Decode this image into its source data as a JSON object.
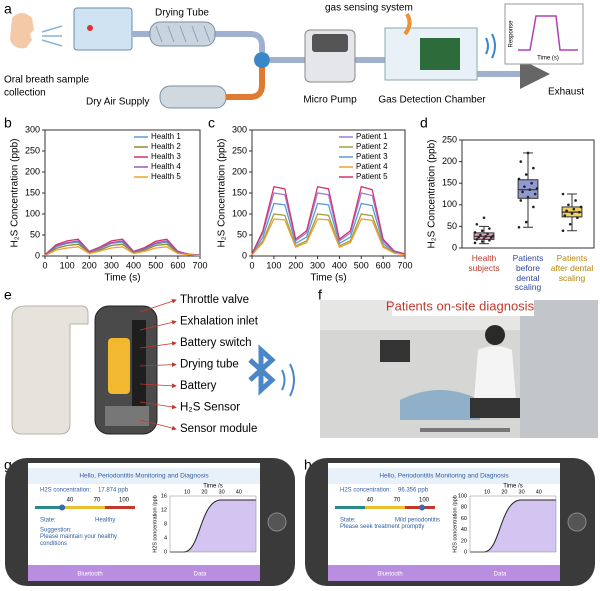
{
  "panel_labels": [
    "a",
    "b",
    "c",
    "d",
    "e",
    "f",
    "g",
    "h"
  ],
  "panel_a": {
    "drying_tube": "Drying Tube",
    "gas_sensing": "gas sensing system",
    "breath": [
      "Oral breath sample",
      "collection"
    ],
    "dry_air": "Dry Air Supply",
    "pump": "Micro Pump",
    "chamber": "Gas Detection Chamber",
    "exhaust": "Exhaust",
    "inset_ylabel": "Response",
    "inset_xlabel": "Time (s)"
  },
  "chart_data": [
    {
      "type": "line",
      "xlabel": "Time (s)",
      "ylabel": "H₂S Concentration (ppb)",
      "x": [
        0,
        50,
        100,
        150,
        200,
        250,
        300,
        350,
        400,
        450,
        500,
        550,
        600,
        650,
        700
      ],
      "xlim": [
        0,
        700
      ],
      "xticks": [
        0,
        100,
        200,
        300,
        400,
        500,
        600,
        700
      ],
      "ylim": [
        0,
        300
      ],
      "yticks": [
        0,
        50,
        100,
        150,
        200,
        250,
        300
      ],
      "legend": "upper right",
      "series": [
        {
          "name": "Health 1",
          "color": "#5b9bd5",
          "values": [
            2,
            22,
            30,
            33,
            9,
            18,
            30,
            33,
            9,
            16,
            29,
            33,
            9,
            4,
            2
          ]
        },
        {
          "name": "Health 2",
          "color": "#8c8c2c",
          "values": [
            2,
            18,
            25,
            28,
            8,
            15,
            25,
            28,
            8,
            14,
            25,
            28,
            8,
            3,
            2
          ]
        },
        {
          "name": "Health 3",
          "color": "#d6336c",
          "values": [
            3,
            27,
            36,
            40,
            11,
            22,
            36,
            40,
            11,
            20,
            35,
            40,
            11,
            4,
            2
          ]
        },
        {
          "name": "Health 4",
          "color": "#9b59b6",
          "values": [
            2,
            24,
            32,
            36,
            10,
            20,
            32,
            36,
            10,
            18,
            31,
            36,
            10,
            4,
            2
          ]
        },
        {
          "name": "Health 5",
          "color": "#f0a030",
          "values": [
            1,
            14,
            19,
            22,
            6,
            12,
            19,
            22,
            6,
            11,
            19,
            22,
            6,
            3,
            1
          ]
        }
      ]
    },
    {
      "type": "line",
      "xlabel": "Time (s)",
      "ylabel": "H₂S Concentration (ppb)",
      "x": [
        0,
        50,
        100,
        150,
        200,
        250,
        300,
        350,
        400,
        450,
        500,
        550,
        600,
        650,
        700
      ],
      "xlim": [
        0,
        700
      ],
      "xticks": [
        0,
        100,
        200,
        300,
        400,
        500,
        600,
        700
      ],
      "ylim": [
        0,
        300
      ],
      "yticks": [
        0,
        50,
        100,
        150,
        200,
        250,
        300
      ],
      "legend": "upper right",
      "series": [
        {
          "name": "Patient 1",
          "color": "#9b7fd4",
          "values": [
            5,
            55,
            150,
            146,
            36,
            55,
            150,
            146,
            36,
            55,
            150,
            144,
            36,
            11,
            5
          ]
        },
        {
          "name": "Patient 2",
          "color": "#a0a040",
          "values": [
            4,
            36,
            100,
            97,
            24,
            36,
            100,
            97,
            24,
            36,
            100,
            96,
            24,
            8,
            4
          ]
        },
        {
          "name": "Patient 3",
          "color": "#5b9bd5",
          "values": [
            4,
            45,
            125,
            122,
            30,
            45,
            125,
            122,
            30,
            45,
            125,
            120,
            30,
            9,
            4
          ]
        },
        {
          "name": "Patient 4",
          "color": "#f0a030",
          "values": [
            3,
            32,
            88,
            86,
            21,
            32,
            88,
            86,
            21,
            32,
            88,
            85,
            21,
            7,
            3
          ]
        },
        {
          "name": "Patient 5",
          "color": "#d6336c",
          "values": [
            5,
            60,
            165,
            160,
            40,
            60,
            165,
            160,
            40,
            60,
            165,
            158,
            40,
            12,
            5
          ]
        }
      ]
    },
    {
      "type": "box",
      "ylabel": "H₂S Concentration (ppb)",
      "categories": [
        "Health subjects",
        "Patients before dental scaling",
        "Patients after dental scaling"
      ],
      "label_colors": [
        "#c0392b",
        "#2e4a9e",
        "#b8860b"
      ],
      "ylim": [
        0,
        250
      ],
      "yticks": [
        0,
        50,
        100,
        150,
        200,
        250
      ],
      "boxes": [
        {
          "color": "#e8a0c0",
          "whisker_low": 10,
          "q1": 20,
          "median": 27,
          "q3": 35,
          "whisker_high": 50,
          "points": [
            12,
            15,
            18,
            20,
            22,
            24,
            25,
            27,
            28,
            30,
            33,
            36,
            40,
            45,
            55,
            70
          ]
        },
        {
          "color": "#8f9ad0",
          "whisker_low": 48,
          "q1": 115,
          "median": 135,
          "q3": 158,
          "whisker_high": 220,
          "points": [
            48,
            60,
            95,
            110,
            118,
            125,
            130,
            135,
            138,
            142,
            150,
            160,
            170,
            185,
            200,
            220
          ]
        },
        {
          "color": "#f0d060",
          "whisker_low": 40,
          "q1": 72,
          "median": 83,
          "q3": 95,
          "whisker_high": 125,
          "points": [
            40,
            55,
            70,
            75,
            80,
            83,
            86,
            90,
            95,
            100,
            110,
            125
          ]
        }
      ]
    }
  ],
  "panel_e": {
    "labels": [
      "Throttle valve",
      "Exhalation inlet",
      "Battery switch",
      "Drying tube",
      "Battery",
      "H₂S Sensor",
      "Sensor module"
    ]
  },
  "panel_f": {
    "banner": "Patients  on-site diagnosis"
  },
  "phones": [
    {
      "greeting": "Hello, Periodontitis Monitoring and Diagnosis",
      "conc_label": "H2S concentration:",
      "conc_value": "17.874 ppb",
      "scale": [
        "40",
        "70",
        "100"
      ],
      "state_label": "State:",
      "state": "Healthy",
      "suggestion_label": "Suggestion:",
      "suggestion": "Please maintain your healthy conditions",
      "time_label": "Time /s",
      "time_ticks": [
        "10",
        "20",
        "30",
        "40"
      ],
      "y_ticks": [
        "0",
        "4",
        "8",
        "12",
        "16"
      ],
      "ylabel": "H2S concentration /ppb",
      "tabs": [
        "Bluetooth",
        "Data"
      ]
    },
    {
      "greeting": "Hello, Periodontitis Monitoring and Diagnosis",
      "conc_label": "H2S concentration:",
      "conc_value": "96.356 ppb",
      "scale": [
        "40",
        "70",
        "100"
      ],
      "state_label": "State:",
      "state": "Mild periodontitis",
      "suggestion": "Please seek treatment promptly",
      "time_label": "Time /s",
      "time_ticks": [
        "10",
        "20",
        "30",
        "40"
      ],
      "y_ticks": [
        "0",
        "20",
        "40",
        "60",
        "80",
        "100"
      ],
      "ylabel": "H2S concentration /ppb",
      "tabs": [
        "Bluetooth",
        "Data"
      ]
    }
  ]
}
